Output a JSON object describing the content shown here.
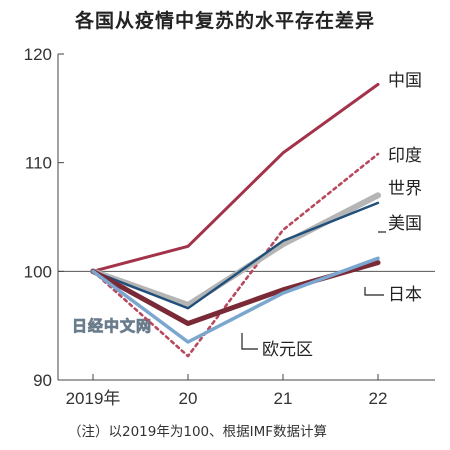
{
  "title": "各国从疫情中复苏的水平存在差异",
  "note": "（注）以2019年为100、根据IMF数据计算",
  "watermark": "日经中文网",
  "chart_data": {
    "type": "line",
    "title": "各国从疫情中复苏的水平存在差异",
    "x": [
      "2019年",
      "20",
      "21",
      "22"
    ],
    "ylim": [
      90,
      120
    ],
    "yticks": [
      90,
      100,
      110,
      120
    ],
    "reference_line": 100,
    "grid": false,
    "legend": "inline-right",
    "series": [
      {
        "name": "中国",
        "values": [
          100,
          102.3,
          110.9,
          117.2
        ],
        "color": "#a3334a",
        "width": 3,
        "dash": false
      },
      {
        "name": "印度",
        "values": [
          100,
          92.2,
          103.8,
          110.8
        ],
        "color": "#b8485d",
        "width": 2.6,
        "dash": true
      },
      {
        "name": "世界",
        "values": [
          100,
          96.9,
          102.5,
          107.0
        ],
        "color": "#b5b5b5",
        "width": 6,
        "dash": false
      },
      {
        "name": "美国",
        "values": [
          100,
          96.6,
          102.8,
          106.3
        ],
        "color": "#1f4f7a",
        "width": 2.4,
        "dash": false
      },
      {
        "name": "日本",
        "values": [
          100,
          95.2,
          98.3,
          100.8
        ],
        "color": "#7a2a36",
        "width": 5,
        "dash": false
      },
      {
        "name": "欧元区",
        "values": [
          100,
          93.5,
          98.0,
          101.2
        ],
        "color": "#7aa6cf",
        "width": 3.5,
        "dash": false
      }
    ]
  }
}
